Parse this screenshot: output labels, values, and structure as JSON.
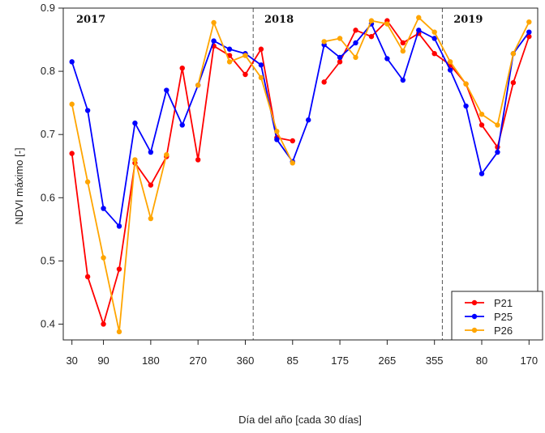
{
  "chart_data": {
    "type": "line",
    "xlabel": "Día del año [cada 30 días]",
    "ylabel": "NDVI máximo [-]",
    "ylim": [
      0.4,
      0.9
    ],
    "y_ticks": [
      "0.4",
      "0.5",
      "0.6",
      "0.7",
      "0.8",
      "0.9"
    ],
    "x_tick_labels": [
      "30",
      "90",
      "180",
      "270",
      "360",
      "85",
      "175",
      "265",
      "355",
      "80",
      "170"
    ],
    "x_tick_index": [
      1,
      3,
      6,
      9,
      12,
      15,
      18,
      21,
      24,
      27,
      30
    ],
    "year_separators_index": [
      12.5,
      24.5
    ],
    "year_labels": [
      {
        "text": "2017",
        "index": 0
      },
      {
        "text": "2018",
        "index": 12.9
      },
      {
        "text": "2019",
        "index": 24.9
      }
    ],
    "x_index": [
      1,
      2,
      3,
      4,
      5,
      6,
      7,
      8,
      9,
      10,
      11,
      12,
      13,
      14,
      15,
      16,
      17,
      18,
      19,
      20,
      21,
      22,
      23,
      24,
      25,
      26,
      27,
      28,
      29,
      30
    ],
    "series": [
      {
        "name": "P21",
        "color": "#ff0000",
        "values": [
          0.67,
          0.475,
          0.4,
          0.487,
          0.655,
          0.62,
          0.665,
          0.805,
          0.66,
          0.84,
          0.825,
          0.795,
          0.835,
          0.695,
          0.69,
          null,
          0.783,
          0.815,
          0.865,
          0.855,
          0.88,
          0.845,
          0.86,
          0.828,
          0.81,
          0.78,
          0.715,
          0.68,
          0.782,
          0.855
        ]
      },
      {
        "name": "P25",
        "color": "#0000ff",
        "values": [
          0.815,
          0.738,
          0.583,
          0.555,
          0.718,
          0.672,
          0.77,
          0.715,
          0.778,
          0.848,
          0.835,
          0.828,
          0.81,
          0.692,
          0.657,
          0.723,
          0.842,
          0.822,
          0.845,
          0.875,
          0.82,
          0.786,
          0.865,
          0.852,
          0.802,
          0.745,
          0.638,
          0.672,
          0.828,
          0.862
        ]
      },
      {
        "name": "P26",
        "color": "#ffa500",
        "values": [
          0.748,
          0.625,
          0.505,
          0.388,
          0.66,
          0.567,
          0.668,
          null,
          0.778,
          0.877,
          0.815,
          0.825,
          0.79,
          0.705,
          0.655,
          null,
          0.847,
          0.852,
          0.822,
          0.88,
          0.875,
          0.832,
          0.885,
          0.862,
          0.815,
          0.78,
          0.732,
          0.715,
          0.828,
          0.878
        ]
      }
    ],
    "legend_position": "bottom-right",
    "grid": false
  }
}
